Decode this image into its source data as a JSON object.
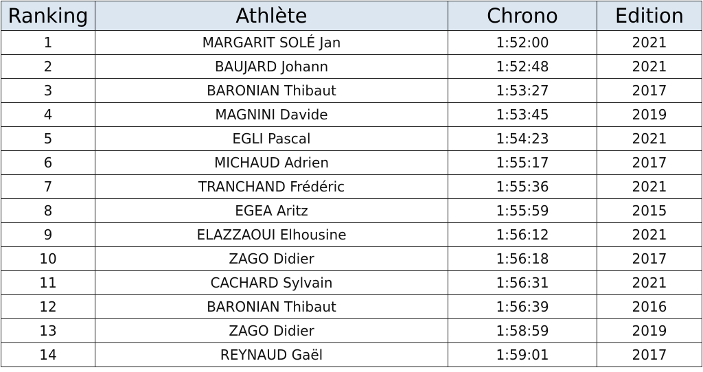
{
  "table": {
    "header": [
      "Ranking",
      "Athlète",
      "Chrono",
      "Edition"
    ],
    "rows": [
      [
        "1",
        "MARGARIT SOLÉ Jan",
        "1:52:00",
        "2021"
      ],
      [
        "2",
        "BAUJARD Johann",
        "1:52:48",
        "2021"
      ],
      [
        "3",
        "BARONIAN Thibaut",
        "1:53:27",
        "2017"
      ],
      [
        "4",
        "MAGNINI Davide",
        "1:53:45",
        "2019"
      ],
      [
        "5",
        "EGLI Pascal",
        "1:54:23",
        "2021"
      ],
      [
        "6",
        "MICHAUD Adrien",
        "1:55:17",
        "2017"
      ],
      [
        "7",
        "TRANCHAND Frédéric",
        "1:55:36",
        "2021"
      ],
      [
        "8",
        "EGEA Aritz",
        "1:55:59",
        "2015"
      ],
      [
        "9",
        "ELAZZAOUI Elhousine",
        "1:56:12",
        "2021"
      ],
      [
        "10",
        "ZAGO Didier",
        "1:56:18",
        "2017"
      ],
      [
        "11",
        "CACHARD Sylvain",
        "1:56:31",
        "2021"
      ],
      [
        "12",
        "BARONIAN Thibaut",
        "1:56:39",
        "2016"
      ],
      [
        "13",
        "ZAGO Didier",
        "1:58:59",
        "2019"
      ],
      [
        "14",
        "REYNAUD Gaël",
        "1:59:01",
        "2017"
      ]
    ]
  }
}
